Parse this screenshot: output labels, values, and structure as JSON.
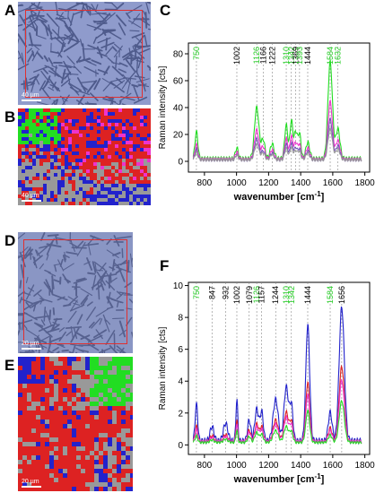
{
  "panels": {
    "A": {
      "letter": "A",
      "scale_label": "40 µm"
    },
    "B": {
      "letter": "B",
      "scale_label": "40 µm"
    },
    "C": {
      "letter": "C"
    },
    "D": {
      "letter": "D",
      "scale_label": "20 µm"
    },
    "E": {
      "letter": "E",
      "scale_label": "20 µm"
    },
    "F": {
      "letter": "F"
    }
  },
  "colors": {
    "green": "#22dd22",
    "magenta": "#ee33cc",
    "blue": "#2222cc",
    "red": "#dd2222",
    "gray": "#999999",
    "purple": "#7755bb",
    "peak_green_label": "#22cc22",
    "peak_black_label": "#000000"
  },
  "chart_data": [
    {
      "type": "line",
      "title": "",
      "xlabel": "wavenumber [cm",
      "xlabel_sup": "-1",
      "xlabel_end": "]",
      "ylabel": "Raman intensity [cts]",
      "xlim": [
        700,
        1830
      ],
      "ylim": [
        -8,
        88
      ],
      "xticks": [
        800,
        1000,
        1200,
        1400,
        1600,
        1800
      ],
      "yticks": [
        0,
        20,
        40,
        60,
        80
      ],
      "grid": false,
      "peaks": [
        {
          "wn": 750,
          "label": "750",
          "color": "green"
        },
        {
          "wn": 1002,
          "label": "1002",
          "color": "black"
        },
        {
          "wn": 1126,
          "label": "1126",
          "color": "green"
        },
        {
          "wn": 1166,
          "label": "1166",
          "color": "black"
        },
        {
          "wn": 1222,
          "label": "1222",
          "color": "black"
        },
        {
          "wn": 1310,
          "label": "1310",
          "color": "green"
        },
        {
          "wn": 1342,
          "label": "1342",
          "color": "green"
        },
        {
          "wn": 1369,
          "label": "1369",
          "color": "black"
        },
        {
          "wn": 1393,
          "label": "1393",
          "color": "green"
        },
        {
          "wn": 1444,
          "label": "1444",
          "color": "black"
        },
        {
          "wn": 1584,
          "label": "1584",
          "color": "green"
        },
        {
          "wn": 1632,
          "label": "1632",
          "color": "green"
        }
      ],
      "series": [
        {
          "color": "green",
          "baseline": 2,
          "scale": 1.0,
          "bands": [
            [
              750,
              20,
              9
            ],
            [
              1002,
              8,
              9
            ],
            [
              1126,
              38,
              14
            ],
            [
              1166,
              14,
              11
            ],
            [
              1222,
              11,
              12
            ],
            [
              1310,
              25,
              10
            ],
            [
              1342,
              28,
              9
            ],
            [
              1369,
              20,
              10
            ],
            [
              1393,
              18,
              9
            ],
            [
              1444,
              12,
              12
            ],
            [
              1584,
              72,
              14
            ],
            [
              1632,
              22,
              13
            ]
          ]
        },
        {
          "color": "magenta",
          "baseline": 1.5,
          "scale": 0.78,
          "bands": [
            [
              750,
              14,
              9
            ],
            [
              1002,
              7,
              9
            ],
            [
              1126,
              28,
              14
            ],
            [
              1166,
              12,
              11
            ],
            [
              1222,
              9,
              12
            ],
            [
              1310,
              20,
              10
            ],
            [
              1342,
              22,
              9
            ],
            [
              1369,
              16,
              10
            ],
            [
              1393,
              14,
              9
            ],
            [
              1444,
              11,
              12
            ],
            [
              1584,
              55,
              14
            ],
            [
              1632,
              18,
              13
            ]
          ]
        },
        {
          "color": "purple",
          "baseline": 1,
          "scale": 0.66,
          "bands": [
            [
              750,
              12,
              9
            ],
            [
              1002,
              6,
              9
            ],
            [
              1126,
              24,
              14
            ],
            [
              1166,
              10,
              11
            ],
            [
              1222,
              8,
              12
            ],
            [
              1310,
              18,
              10
            ],
            [
              1342,
              19,
              9
            ],
            [
              1369,
              14,
              10
            ],
            [
              1393,
              12,
              9
            ],
            [
              1444,
              10,
              12
            ],
            [
              1584,
              46,
              14
            ],
            [
              1632,
              16,
              13
            ]
          ]
        },
        {
          "color": "gray",
          "baseline": 1,
          "scale": 0.58,
          "bands": [
            [
              750,
              10,
              9
            ],
            [
              1002,
              6,
              9
            ],
            [
              1126,
              20,
              14
            ],
            [
              1166,
              9,
              11
            ],
            [
              1222,
              7,
              12
            ],
            [
              1310,
              15,
              10
            ],
            [
              1342,
              16,
              9
            ],
            [
              1369,
              12,
              10
            ],
            [
              1393,
              11,
              9
            ],
            [
              1444,
              9,
              12
            ],
            [
              1584,
              40,
              14
            ],
            [
              1632,
              14,
              13
            ]
          ]
        }
      ]
    },
    {
      "type": "line",
      "title": "",
      "xlabel": "wavenumber [cm",
      "xlabel_sup": "-1",
      "xlabel_end": "]",
      "ylabel": "Raman intensity [cts]",
      "xlim": [
        700,
        1830
      ],
      "ylim": [
        -0.6,
        10.2
      ],
      "xticks": [
        800,
        1000,
        1200,
        1400,
        1600,
        1800
      ],
      "yticks": [
        0,
        2,
        4,
        6,
        8,
        10
      ],
      "grid": false,
      "peaks": [
        {
          "wn": 750,
          "label": "750",
          "color": "green"
        },
        {
          "wn": 847,
          "label": "847",
          "color": "black"
        },
        {
          "wn": 932,
          "label": "932",
          "color": "black"
        },
        {
          "wn": 1002,
          "label": "1002",
          "color": "black"
        },
        {
          "wn": 1079,
          "label": "1079",
          "color": "black"
        },
        {
          "wn": 1126,
          "label": "1126",
          "color": "green"
        },
        {
          "wn": 1157,
          "label": "1157",
          "color": "black"
        },
        {
          "wn": 1244,
          "label": "1244",
          "color": "black"
        },
        {
          "wn": 1310,
          "label": "1310",
          "color": "green"
        },
        {
          "wn": 1342,
          "label": "1342",
          "color": "green"
        },
        {
          "wn": 1444,
          "label": "1444",
          "color": "black"
        },
        {
          "wn": 1584,
          "label": "1584",
          "color": "green"
        },
        {
          "wn": 1656,
          "label": "1656",
          "color": "black"
        }
      ],
      "series": [
        {
          "color": "blue",
          "baseline": 0.25,
          "scale": 1.0,
          "bands": [
            [
              750,
              2.3,
              8
            ],
            [
              847,
              0.9,
              12
            ],
            [
              932,
              1.1,
              14
            ],
            [
              1002,
              2.6,
              6
            ],
            [
              1079,
              1.3,
              10
            ],
            [
              1126,
              2.0,
              12
            ],
            [
              1157,
              1.8,
              10
            ],
            [
              1244,
              2.6,
              16
            ],
            [
              1310,
              3.4,
              14
            ],
            [
              1342,
              2.2,
              10
            ],
            [
              1444,
              7.3,
              12
            ],
            [
              1584,
              1.8,
              12
            ],
            [
              1656,
              8.4,
              16
            ]
          ]
        },
        {
          "color": "red",
          "baseline": 0.2,
          "scale": 0.62,
          "bands": [
            [
              750,
              1.6,
              8
            ],
            [
              847,
              0.6,
              12
            ],
            [
              932,
              0.7,
              14
            ],
            [
              1002,
              2.2,
              6
            ],
            [
              1079,
              1.2,
              10
            ],
            [
              1126,
              1.8,
              12
            ],
            [
              1157,
              1.5,
              10
            ],
            [
              1244,
              2.2,
              16
            ],
            [
              1310,
              3.0,
              14
            ],
            [
              1342,
              2.0,
              10
            ],
            [
              1444,
              6.0,
              12
            ],
            [
              1584,
              1.4,
              12
            ],
            [
              1656,
              7.6,
              16
            ]
          ]
        },
        {
          "color": "magenta",
          "baseline": 0.2,
          "scale": 0.55,
          "bands": [
            [
              750,
              1.4,
              8
            ],
            [
              847,
              0.5,
              12
            ],
            [
              932,
              0.6,
              14
            ],
            [
              1002,
              2.0,
              6
            ],
            [
              1079,
              1.1,
              10
            ],
            [
              1126,
              1.7,
              12
            ],
            [
              1157,
              1.4,
              10
            ],
            [
              1244,
              2.0,
              16
            ],
            [
              1310,
              2.8,
              14
            ],
            [
              1342,
              1.9,
              10
            ],
            [
              1444,
              5.4,
              12
            ],
            [
              1584,
              1.3,
              12
            ],
            [
              1656,
              7.0,
              16
            ]
          ]
        },
        {
          "color": "green",
          "baseline": 0.15,
          "scale": 0.42,
          "bands": [
            [
              750,
              1.0,
              8
            ],
            [
              847,
              0.4,
              12
            ],
            [
              932,
              0.5,
              14
            ],
            [
              1002,
              1.8,
              6
            ],
            [
              1079,
              0.9,
              10
            ],
            [
              1126,
              1.5,
              12
            ],
            [
              1157,
              1.2,
              10
            ],
            [
              1244,
              1.8,
              16
            ],
            [
              1310,
              2.4,
              14
            ],
            [
              1342,
              1.6,
              10
            ],
            [
              1444,
              4.8,
              12
            ],
            [
              1584,
              1.1,
              12
            ],
            [
              1656,
              6.2,
              16
            ]
          ]
        }
      ]
    }
  ]
}
